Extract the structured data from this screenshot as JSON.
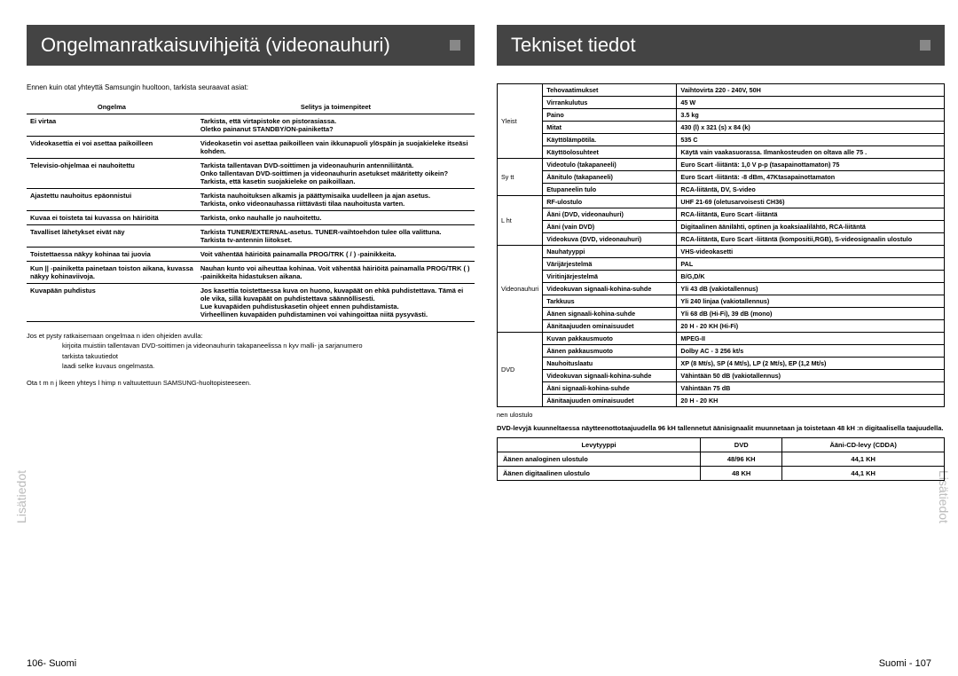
{
  "left": {
    "title": "Ongelmanratkaisuvihjeitä (videonauhuri)",
    "intro": "Ennen kuin otat yhteyttä    Samsungin huoltoon, tarkista seuraavat asiat:",
    "head1": "Ongelma",
    "head2": "Selitys ja toimenpiteet",
    "rows": [
      {
        "p": "Ei virtaa",
        "s": "Tarkista, että virtapistoke on pistorasiassa.\nOletko painanut STANDBY/ON-painiketta?"
      },
      {
        "p": "Videokasettia ei voi asettaa paikoilleen",
        "s": "Videokasetin voi asettaa paikoilleen vain ikkunapuoli ylöspäin ja suojakieleke itseäsi kohden."
      },
      {
        "p": "Televisio-ohjelmaa ei nauhoitettu",
        "s": "Tarkista tallentavan DVD-soittimen ja videonauhurin antenniliitäntä.\nOnko tallentavan DVD-soittimen ja videonauhurin asetukset määritetty oikein?\nTarkista, että kasetin suojakieleke on paikoillaan."
      },
      {
        "p": "Ajastettu nauhoitus epäonnistui",
        "s": "Tarkista nauhoituksen alkamis ja päättymisaika uudelleen ja ajan asetus.\nTarkista, onko videonauhassa riittävästi tilaa nauhoitusta varten."
      },
      {
        "p": "Kuvaa ei toisteta tai kuvassa on häiriöitä",
        "s": "Tarkista, onko nauhalle jo nauhoitettu."
      },
      {
        "p": "Tavalliset lähetykset eivät näy",
        "s": "Tarkista TUNER/EXTERNAL-asetus. TUNER-vaihtoehdon tulee olla valittuna.\nTarkista tv-antennin liitokset."
      },
      {
        "p": "Toistettaessa näkyy kohinaa tai juovia",
        "s": "Voit vähentää häiriöitä painamalla PROG/TRK ( / ) -painikkeita."
      },
      {
        "p": "Kun  ||  -painiketta painetaan toiston aikana, kuvassa näkyy kohinaviivoja.",
        "s": "Nauhan kunto voi aiheuttaa kohinaa. Voit vähentää häiriöitä painamalla PROG/TRK ( ) -painikkeita hidastuksen aikana."
      },
      {
        "p": "Kuvapään puhdistus",
        "s": "Jos kasettia toistettaessa kuva on huono, kuvapäät on ehkä puhdistettava. Tämä ei ole vika, sillä kuvapäät on puhdistettava säännöllisesti.\nLue kuvapäiden puhdistuskasetin ohjeet ennen puhdistamista.\nVirheellinen kuvapäiden puhdistaminen voi vahingoittaa niitä pysyvästi."
      }
    ],
    "note1": "Jos et pysty ratkaisemaan ongelmaa n    iden ohjeiden avulla:",
    "note2a": "kirjoita muistiin tallentavan DVD-soittimen ja videonauhurin takapaneelissa n    kyv  malli- ja sarjanumero",
    "note2b": "tarkista takuutiedot",
    "note2c": "laadi selke  kuvaus ongelmasta.",
    "note3": "Ota t m n j lkeen yhteys l himp n valtuutettuun SAMSUNG-huoltopisteeseen.",
    "footer": "106- Suomi"
  },
  "right": {
    "title": "Tekniset tiedot",
    "sections": [
      {
        "cat": "Yleist",
        "rows": [
          {
            "k": "Tehovaatimukset",
            "v": "Vaihtovirta 220 - 240V, 50H"
          },
          {
            "k": "Virrankulutus",
            "v": "45 W"
          },
          {
            "k": "Paino",
            "v": "3.5 kg"
          },
          {
            "k": "Mitat",
            "v": "430 (l) x 321 (s) x 84 (k)"
          },
          {
            "k": "Käyttölämpötila.",
            "v": "   535 C"
          },
          {
            "k": "Käyttöolosuhteet",
            "v": "Käytä vain vaakasuorassa. Ilmankosteuden on oltava alle 75 ."
          }
        ]
      },
      {
        "cat": "Sy  tt",
        "rows": [
          {
            "k": "Videotulo (takapaneeli)",
            "v": "Euro Scart -liitäntä: 1,0 V p-p (tasapainottamaton) 75"
          },
          {
            "k": "Äänitulo (takapaneeli)",
            "v": "Euro Scart -liitäntä: -8 dBm, 47Ktasapainottamaton"
          },
          {
            "k": "Etupaneelin tulo",
            "v": "RCA-liitäntä, DV, S-video"
          }
        ]
      },
      {
        "cat": "L  ht",
        "rows": [
          {
            "k": "RF-ulostulo",
            "v": "UHF 21-69 (oletusarvoisesti CH36)"
          },
          {
            "k": "Ääni (DVD, videonauhuri)",
            "v": "RCA-liitäntä, Euro Scart -liitäntä"
          },
          {
            "k": "Ääni (vain DVD)",
            "v": "Digitaalinen äänilähti, optinen ja koaksiaalilähtö, RCA-liitäntä"
          },
          {
            "k": "Videokuva (DVD, videonauhuri)",
            "v": "RCA-liitäntä, Euro Scart -liitäntä (kompositii,RGB), S-videosignaalin ulostulo"
          }
        ]
      },
      {
        "cat": "Videonauhuri",
        "rows": [
          {
            "k": "Nauhatyyppi",
            "v": "VHS-videokasetti"
          },
          {
            "k": "Värijärjestelmä",
            "v": "PAL"
          },
          {
            "k": "Viritinjärjestelmä",
            "v": "B/G,D/K"
          },
          {
            "k": "Videokuvan signaali-kohina-suhde",
            "v": "Yli 43 dB (vakiotallennus)"
          },
          {
            "k": "Tarkkuus",
            "v": "Yli 240 linjaa (vakiotallennus)"
          },
          {
            "k": "Äänen signaali-kohina-suhde",
            "v": "Yli 68 dB (Hi-Fi), 39 dB (mono)"
          },
          {
            "k": "Äänitaajuuden ominaisuudet",
            "v": "20 H  - 20 KH  (Hi-Fi)"
          }
        ]
      },
      {
        "cat": "DVD",
        "rows": [
          {
            "k": "Kuvan pakkausmuoto",
            "v": "MPEG-II"
          },
          {
            "k": "Äänen pakkausmuoto",
            "v": "Dolby AC - 3 256 kt/s"
          },
          {
            "k": "Nauhoituslaatu",
            "v": "XP (8 Mt/s), SP (4 Mt/s), LP (2 Mt/s), EP (1,2 Mt/s)"
          },
          {
            "k": "Videokuvan signaali-kohina-suhde",
            "v": "Vähintään 50 dB (vakiotallennus)"
          },
          {
            "k": "Ääni signaali-kohina-suhde",
            "v": "Vähintään 75 dB"
          },
          {
            "k": "Äänitaajuuden ominaisuudet",
            "v": "20 H  - 20 KH"
          }
        ]
      }
    ],
    "note_t": "  nen ulostulo",
    "note": "DVD-levyjä kuunneltaessa näytteenottotaajuudella 96 kH  tallennetut äänisignaalit muunnetaan ja toistetaan 48 kH :n digitaalisella taajuudella.",
    "t2head": [
      "Levytyyppi",
      "DVD",
      "Ääni-CD-levy (CDDA)"
    ],
    "t2rows": [
      [
        "Äänen analoginen ulostulo",
        "48/96 KH",
        "44,1 KH"
      ],
      [
        "Äänen digitaalinen ulostulo",
        "48 KH",
        "44,1 KH"
      ]
    ],
    "footer": "Suomi - 107"
  },
  "sidetab": "Lisätiedot"
}
